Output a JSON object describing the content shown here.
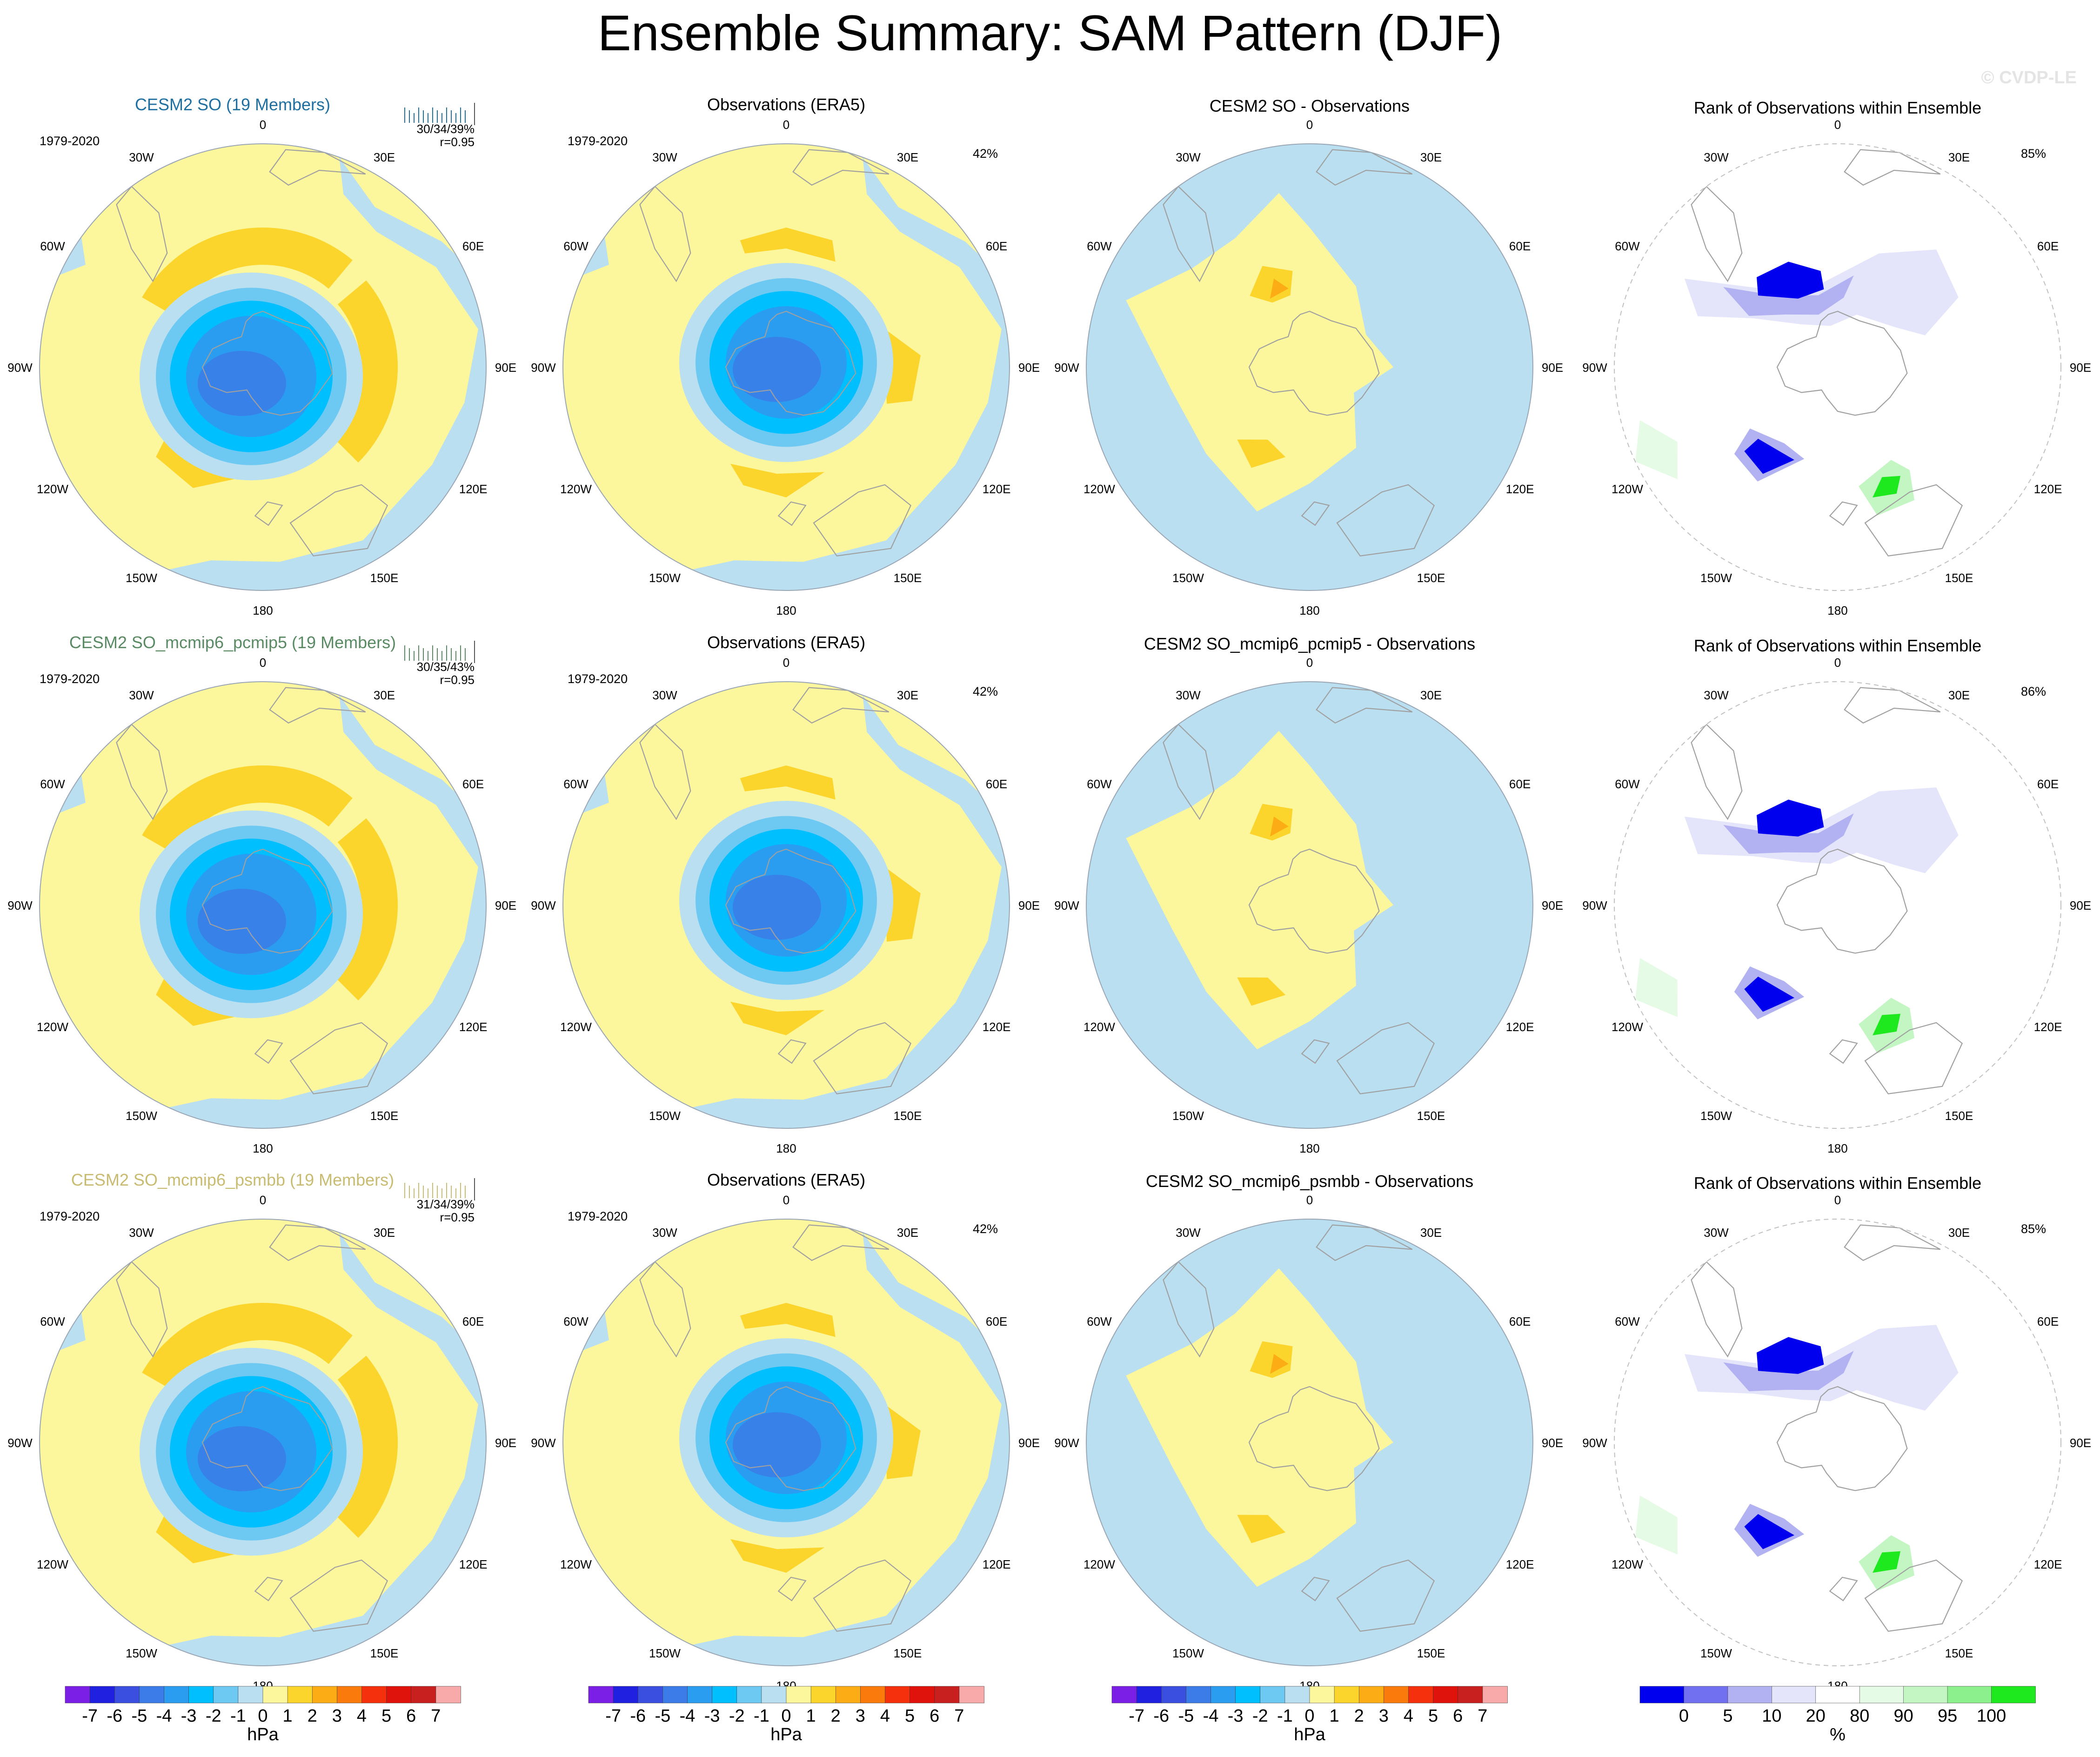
{
  "title": "Ensemble Summary: SAM Pattern (DJF)",
  "watermark": "© CVDP-LE",
  "colors": {
    "diff_scale": [
      "#7c1fe6",
      "#2020e0",
      "#3a4fe0",
      "#3b7ce8",
      "#2a9df0",
      "#00bfff",
      "#6dc9f2",
      "#b9dff1",
      "#fcf69c",
      "#fcd52c",
      "#fcac14",
      "#fb7a0c",
      "#f5300c",
      "#e0120c",
      "#c8201e",
      "#f8a9a9"
    ],
    "rank_scale": [
      "#0000ee",
      "#7070f0",
      "#b2b2f2",
      "#e4e4fa",
      "#ffffff",
      "#e6fbe6",
      "#c4f6c4",
      "#8cf08c",
      "#1ee81e"
    ],
    "land_outline": "#a0a0a0"
  },
  "longitude_labels": [
    "0",
    "30E",
    "60E",
    "90E",
    "120E",
    "150E",
    "180",
    "150W",
    "120W",
    "90W",
    "60W",
    "30W"
  ],
  "rows": [
    {
      "model_title": "CESM2 SO (19 Members)",
      "model_title_color": "#1f6fa0",
      "years": "1979-2020",
      "stats": "30/34/39%",
      "corr": "r=0.95",
      "obs_title": "Observations (ERA5)",
      "obs_years": "1979-2020",
      "obs_pct": "42%",
      "diff_title": "CESM2 SO - Observations",
      "rank_title": "Rank of Observations within Ensemble",
      "rank_pct": "85%"
    },
    {
      "model_title": "CESM2 SO_mcmip6_pcmip5 (19 Members)",
      "model_title_color": "#5a8a63",
      "years": "1979-2020",
      "stats": "30/35/43%",
      "corr": "r=0.95",
      "obs_title": "Observations (ERA5)",
      "obs_years": "1979-2020",
      "obs_pct": "42%",
      "diff_title": "CESM2 SO_mcmip6_pcmip5 - Observations",
      "rank_title": "Rank of Observations within Ensemble",
      "rank_pct": "86%"
    },
    {
      "model_title": "CESM2 SO_mcmip6_psmbb (19 Members)",
      "model_title_color": "#c8bb72",
      "years": "1979-2020",
      "stats": "31/34/39%",
      "corr": "r=0.95",
      "obs_title": "Observations (ERA5)",
      "obs_years": "1979-2020",
      "obs_pct": "42%",
      "diff_title": "CESM2 SO_mcmip6_psmbb - Observations",
      "rank_title": "Rank of Observations within Ensemble",
      "rank_pct": "85%"
    }
  ],
  "colorbars": [
    {
      "labels": [
        "-7",
        "-6",
        "-5",
        "-4",
        "-3",
        "-2",
        "-1",
        "0",
        "1",
        "2",
        "3",
        "4",
        "5",
        "6",
        "7"
      ],
      "unit": "hPa"
    },
    {
      "labels": [
        "-7",
        "-6",
        "-5",
        "-4",
        "-3",
        "-2",
        "-1",
        "0",
        "1",
        "2",
        "3",
        "4",
        "5",
        "6",
        "7"
      ],
      "unit": "hPa"
    },
    {
      "labels": [
        "-7",
        "-6",
        "-5",
        "-4",
        "-3",
        "-2",
        "-1",
        "0",
        "1",
        "2",
        "3",
        "4",
        "5",
        "6",
        "7"
      ],
      "unit": "hPa"
    },
    {
      "labels": [
        "0",
        "5",
        "10",
        "20",
        "80",
        "90",
        "95",
        "100"
      ],
      "unit": "%"
    }
  ]
}
